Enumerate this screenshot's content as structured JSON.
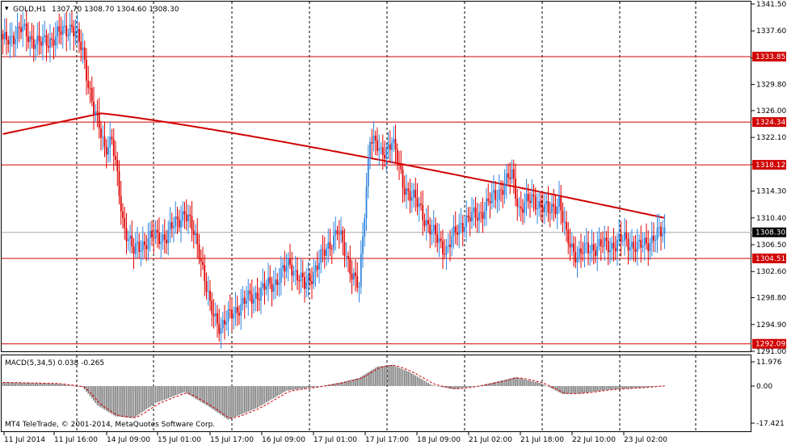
{
  "header": {
    "symbol_label": "GOLD,H1",
    "ohlc_label": "1307.70 1308.70 1304.60 1308.30"
  },
  "macd": {
    "label": "MACD(5,34,5) 0.038 -0.265",
    "axis_labels": [
      "11.976",
      "0.00",
      "-17.421"
    ]
  },
  "footer": {
    "copyright": "MT4 TeleTrade, © 2001-2014, MetaQuotes Software Corp."
  },
  "colors": {
    "bull": "#2f86e0",
    "bear": "#e00000",
    "level": "#d00000",
    "ma": "#d00000",
    "histogram": "#808080",
    "signal": "#d00000"
  },
  "chart_data": {
    "type": "candlestick",
    "price_axis_ticks": [
      "1341.50",
      "1337.60",
      "1333.70",
      "1329.80",
      "1326.00",
      "1322.10",
      "1318.20",
      "1314.30",
      "1310.40",
      "1306.50",
      "1302.60",
      "1298.80",
      "1294.90",
      "1291.00"
    ],
    "price_range": [
      1291.0,
      1341.5
    ],
    "time_axis_labels": [
      "11 Jul 2014",
      "11 Jul 16:00",
      "14 Jul 09:00",
      "15 Jul 01:00",
      "15 Jul 17:00",
      "16 Jul 09:00",
      "17 Jul 01:00",
      "17 Jul 17:00",
      "18 Jul 09:00",
      "21 Jul 02:00",
      "21 Jul 18:00",
      "22 Jul 10:00",
      "23 Jul 02:00"
    ],
    "horizontal_levels": [
      {
        "label": "1333.85",
        "value": 1333.85
      },
      {
        "label": "1324.34",
        "value": 1324.34
      },
      {
        "label": "1318.12",
        "value": 1318.12
      },
      {
        "label": "1304.51",
        "value": 1304.51
      },
      {
        "label": "1292.09",
        "value": 1292.09
      }
    ],
    "current_price": {
      "label": "1308.30",
      "value": 1308.3
    },
    "close_keypoints": [
      [
        0,
        1335.8
      ],
      [
        10,
        1337.8
      ],
      [
        20,
        1335.6
      ],
      [
        28,
        1336.6
      ],
      [
        38,
        1338.4
      ],
      [
        44,
        1334.5
      ],
      [
        50,
        1326.0
      ],
      [
        56,
        1320.8
      ],
      [
        60,
        1321.8
      ],
      [
        66,
        1310.0
      ],
      [
        72,
        1305.4
      ],
      [
        80,
        1307.4
      ],
      [
        90,
        1307.8
      ],
      [
        100,
        1311.4
      ],
      [
        108,
        1306.0
      ],
      [
        114,
        1297.2
      ],
      [
        120,
        1294.6
      ],
      [
        130,
        1297.6
      ],
      [
        140,
        1299.4
      ],
      [
        150,
        1301.2
      ],
      [
        158,
        1303.8
      ],
      [
        166,
        1300.4
      ],
      [
        174,
        1304.0
      ],
      [
        184,
        1308.6
      ],
      [
        192,
        1302.6
      ],
      [
        196,
        1300.0
      ],
      [
        202,
        1322.6
      ],
      [
        208,
        1319.4
      ],
      [
        214,
        1321.8
      ],
      [
        220,
        1315.4
      ],
      [
        230,
        1311.6
      ],
      [
        236,
        1308.2
      ],
      [
        244,
        1305.8
      ],
      [
        252,
        1309.6
      ],
      [
        262,
        1311.0
      ],
      [
        272,
        1314.0
      ],
      [
        280,
        1316.6
      ],
      [
        284,
        1311.8
      ],
      [
        292,
        1313.2
      ],
      [
        300,
        1311.2
      ],
      [
        306,
        1313.0
      ],
      [
        310,
        1307.4
      ],
      [
        316,
        1305.0
      ],
      [
        324,
        1306.2
      ],
      [
        334,
        1306.4
      ],
      [
        342,
        1307.2
      ],
      [
        350,
        1306.0
      ],
      [
        358,
        1307.6
      ],
      [
        364,
        1308.3
      ]
    ],
    "ma_period_note": "",
    "macd_histogram_keypoints": [
      [
        0,
        1.8
      ],
      [
        30,
        1.2
      ],
      [
        44,
        -0.5
      ],
      [
        52,
        -9.0
      ],
      [
        62,
        -14.2
      ],
      [
        72,
        -15.0
      ],
      [
        84,
        -8.0
      ],
      [
        100,
        -2.8
      ],
      [
        114,
        -10.0
      ],
      [
        124,
        -15.8
      ],
      [
        140,
        -10.2
      ],
      [
        156,
        -2.2
      ],
      [
        174,
        -0.2
      ],
      [
        186,
        1.8
      ],
      [
        196,
        4.0
      ],
      [
        206,
        9.6
      ],
      [
        214,
        10.5
      ],
      [
        224,
        6.8
      ],
      [
        236,
        0.5
      ],
      [
        248,
        -1.5
      ],
      [
        262,
        0.2
      ],
      [
        276,
        3.0
      ],
      [
        282,
        4.4
      ],
      [
        296,
        1.4
      ],
      [
        308,
        -3.8
      ],
      [
        318,
        -3.4
      ],
      [
        334,
        -1.6
      ],
      [
        350,
        -0.8
      ],
      [
        364,
        0.2
      ]
    ]
  }
}
